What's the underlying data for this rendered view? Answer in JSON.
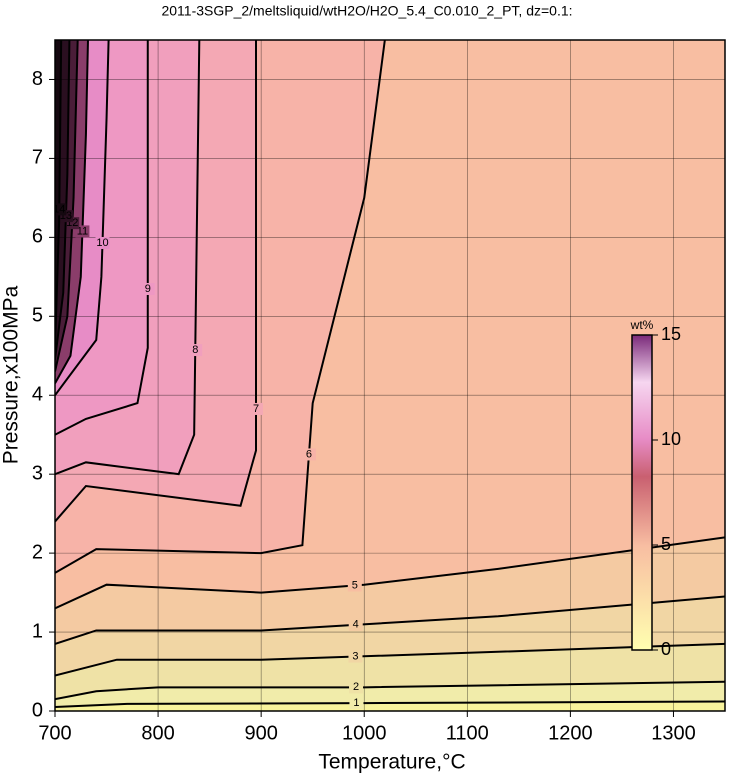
{
  "chart_data": {
    "type": "contour",
    "title": "2011-3SGP_2/meltsliquid/wtH2O/H2O_5.4_C0.010_2_PT, dz=0.1:",
    "xlabel": "Temperature,°C",
    "ylabel": "Pressure,x100MPa",
    "xlim": [
      700,
      1350
    ],
    "ylim": [
      0,
      8.5
    ],
    "xticks": [
      700,
      800,
      900,
      1000,
      1100,
      1200,
      1300
    ],
    "yticks": [
      0,
      1,
      2,
      3,
      4,
      5,
      6,
      7,
      8
    ],
    "grid": true,
    "background": "#f8f39c",
    "contours": [
      {
        "level": 1,
        "color": "#f1ecaa",
        "x": [
          700,
          770,
          1000,
          1350
        ],
        "y": [
          0.05,
          0.09,
          0.1,
          0.12
        ]
      },
      {
        "level": 2,
        "color": "#efe2a6",
        "x": [
          700,
          740,
          800,
          1000,
          1350
        ],
        "y": [
          0.15,
          0.25,
          0.3,
          0.3,
          0.37
        ]
      },
      {
        "level": 3,
        "color": "#f1d6a4",
        "x": [
          700,
          760,
          900,
          1130,
          1350
        ],
        "y": [
          0.45,
          0.65,
          0.65,
          0.75,
          0.85
        ]
      },
      {
        "level": 4,
        "color": "#f4caa2",
        "x": [
          700,
          740,
          900,
          1130,
          1350
        ],
        "y": [
          0.85,
          1.02,
          1.02,
          1.2,
          1.45
        ]
      },
      {
        "level": 5,
        "color": "#f8bea2",
        "x": [
          700,
          750,
          900,
          1000,
          1130,
          1350
        ],
        "y": [
          1.3,
          1.6,
          1.5,
          1.6,
          1.8,
          2.2
        ]
      },
      {
        "level": 6,
        "color": "#f7b3a8",
        "x": [
          700,
          740,
          900,
          940,
          950,
          1000,
          1020
        ],
        "y": [
          1.75,
          2.05,
          2.0,
          2.1,
          3.9,
          6.5,
          8.5
        ]
      },
      {
        "level": 7,
        "color": "#f4a8b4",
        "x": [
          700,
          730,
          880,
          895,
          895
        ],
        "y": [
          2.4,
          2.85,
          2.6,
          3.3,
          8.5
        ]
      },
      {
        "level": 8,
        "color": "#f19fbd",
        "x": [
          700,
          730,
          820,
          835,
          840
        ],
        "y": [
          3.0,
          3.15,
          3.0,
          3.5,
          8.5
        ]
      },
      {
        "level": 9,
        "color": "#ee98c3",
        "x": [
          700,
          730,
          780,
          790,
          790
        ],
        "y": [
          3.5,
          3.7,
          3.9,
          4.6,
          8.5
        ]
      },
      {
        "level": 10,
        "color": "#e78cc6",
        "x": [
          700,
          740,
          745,
          750,
          752
        ],
        "y": [
          4.0,
          4.7,
          5.5,
          7.5,
          8.5
        ]
      },
      {
        "level": 11,
        "color": "#8a3d6a",
        "x": [
          700,
          715,
          725,
          730,
          732
        ],
        "y": [
          4.15,
          4.5,
          5.5,
          7.3,
          8.5
        ]
      },
      {
        "level": 12,
        "color": "#4a1d38",
        "x": [
          700,
          712,
          718,
          722
        ],
        "y": [
          4.3,
          5.0,
          6.5,
          8.5
        ]
      },
      {
        "level": 13,
        "color": "#2a0f20",
        "x": [
          700,
          708,
          712,
          714
        ],
        "y": [
          4.45,
          5.3,
          6.8,
          8.5
        ]
      },
      {
        "level": 14,
        "color": "#150810",
        "x": [
          700,
          704,
          706
        ],
        "y": [
          4.6,
          6.2,
          8.5
        ]
      }
    ],
    "colorbar": {
      "label": "wt%",
      "range": [
        0,
        15
      ],
      "ticks": [
        0,
        5,
        10,
        15
      ]
    }
  }
}
